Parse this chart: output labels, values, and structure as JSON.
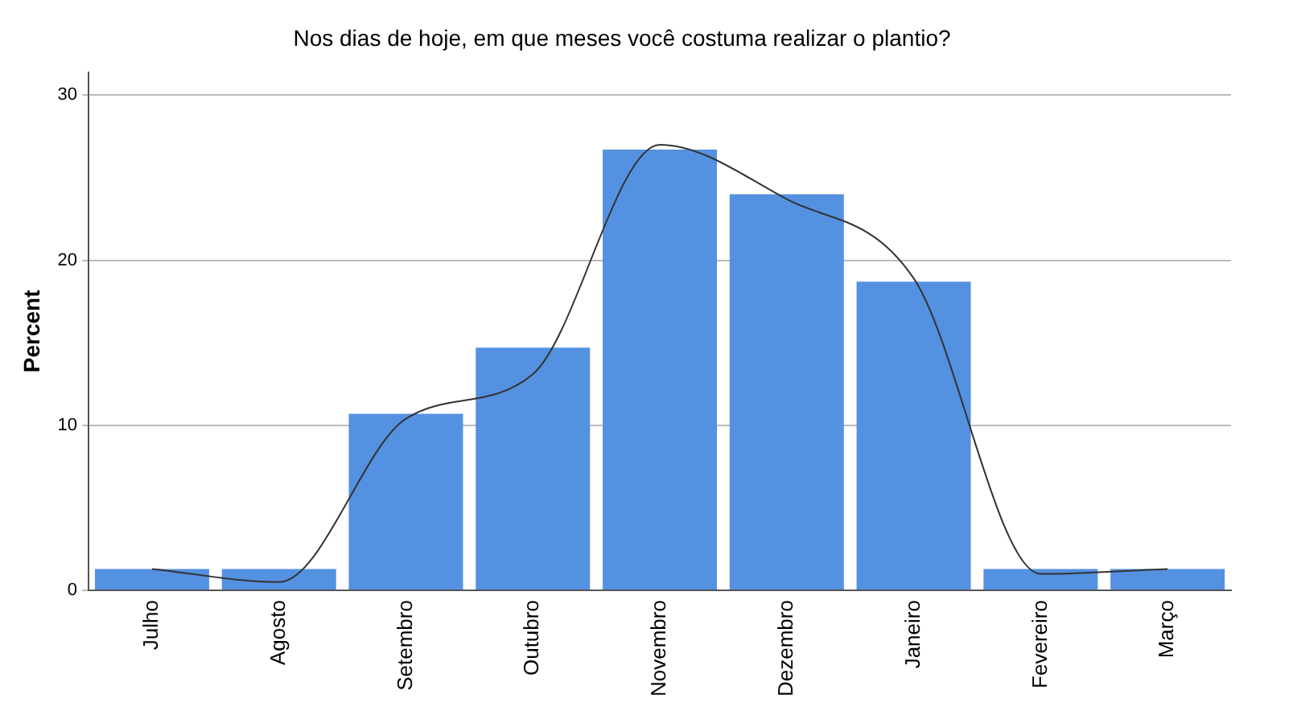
{
  "chart_data": {
    "type": "bar",
    "title": "Nos dias de hoje, em que meses você costuma realizar o plantio?",
    "ylabel": "Percent",
    "categories": [
      "Julho",
      "Agosto",
      "Setembro",
      "Outubro",
      "Novembro",
      "Dezembro",
      "Janeiro",
      "Fevereiro",
      "Março"
    ],
    "series": [
      {
        "color": "#5591e1",
        "values": [
          1.3,
          1.3,
          10.7,
          14.7,
          26.7,
          24.0,
          18.7,
          1.3,
          1.3
        ]
      },
      {
        "type": "line",
        "color": "#333333",
        "values": [
          1.3,
          0.5,
          10.4,
          13.1,
          27.0,
          23.7,
          18.9,
          1.0,
          1.3
        ]
      }
    ],
    "ylim": [
      0,
      31.4
    ],
    "yticks": [
      0,
      10,
      20,
      30
    ],
    "grid": "y",
    "legend": false,
    "marker": "none",
    "line_style": "solid"
  }
}
